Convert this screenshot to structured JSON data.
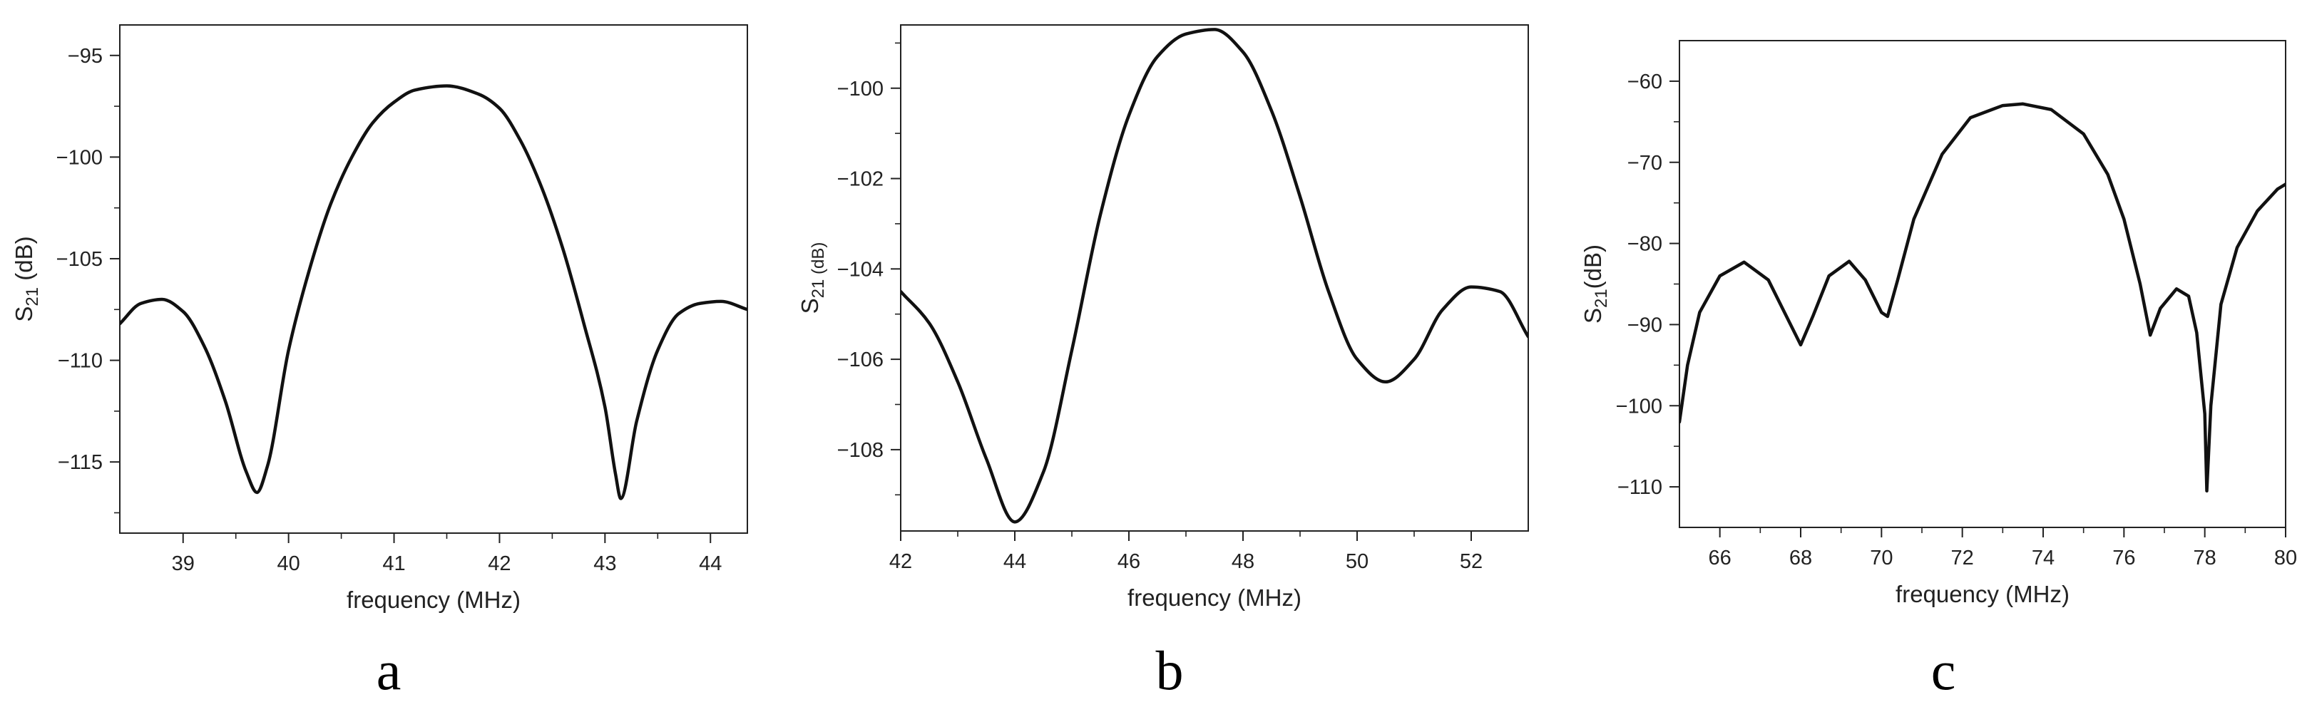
{
  "chart_data": [
    {
      "type": "line",
      "panel_label": "a",
      "xlabel": "frequency (MHz)",
      "ylabel": {
        "base": "S",
        "sub": "21",
        "rest": " (dB)"
      },
      "xlim": [
        38.4,
        44.35
      ],
      "ylim": [
        -118.5,
        -93.5
      ],
      "xticks": [
        39,
        40,
        41,
        42,
        43,
        44
      ],
      "yticks": [
        -95,
        -100,
        -105,
        -110,
        -115
      ],
      "grid": false,
      "legend": "none",
      "line_color": "#111111",
      "series": [
        {
          "x": [
            38.4,
            38.6,
            38.8,
            39.0,
            39.2,
            39.4,
            39.6,
            39.7,
            39.8,
            40.0,
            40.2,
            40.4,
            40.6,
            40.8,
            41.0,
            41.2,
            41.5,
            41.8,
            42.0,
            42.2,
            42.4,
            42.6,
            42.8,
            43.0,
            43.1,
            43.15,
            43.3,
            43.5,
            43.7,
            43.9,
            44.1,
            44.35
          ],
          "y": [
            -108.2,
            -107.2,
            -107.0,
            -107.6,
            -109.3,
            -112.0,
            -115.5,
            -116.5,
            -115.2,
            -109.5,
            -105.5,
            -102.3,
            -100.0,
            -98.3,
            -97.3,
            -96.7,
            -96.5,
            -96.9,
            -97.6,
            -99.2,
            -101.5,
            -104.5,
            -108.2,
            -112.3,
            -115.6,
            -116.8,
            -113.0,
            -109.5,
            -107.7,
            -107.2,
            -107.1,
            -107.5
          ]
        }
      ]
    },
    {
      "type": "line",
      "panel_label": "b",
      "xlabel": "frequency (MHz)",
      "ylabel": {
        "base": "S",
        "sub": "21 (dB)",
        "rest": ""
      },
      "xlim": [
        42.0,
        53.0
      ],
      "ylim": [
        -109.8,
        -98.6
      ],
      "xticks": [
        42,
        44,
        46,
        48,
        50,
        52
      ],
      "yticks": [
        -100,
        -102,
        -104,
        -106,
        -108
      ],
      "grid": false,
      "legend": "none",
      "line_color": "#111111",
      "series": [
        {
          "x": [
            42.0,
            42.5,
            43.0,
            43.5,
            44.0,
            44.5,
            45.0,
            45.5,
            46.0,
            46.5,
            47.0,
            47.5,
            48.0,
            48.5,
            49.0,
            49.5,
            50.0,
            50.5,
            51.0,
            51.5,
            52.0,
            52.5,
            53.0
          ],
          "y": [
            -104.5,
            -105.2,
            -106.5,
            -108.2,
            -109.6,
            -108.5,
            -105.8,
            -102.8,
            -100.6,
            -99.3,
            -98.8,
            -98.7,
            -99.2,
            -100.5,
            -102.4,
            -104.5,
            -106.0,
            -106.5,
            -106.0,
            -104.9,
            -104.4,
            -104.5,
            -105.5
          ]
        }
      ]
    },
    {
      "type": "line",
      "panel_label": "c",
      "xlabel": "frequency (MHz)",
      "ylabel": {
        "base": "S",
        "sub": "21",
        "rest": "(dB)"
      },
      "xlim": [
        65.0,
        80.0
      ],
      "ylim": [
        -115.0,
        -55.0
      ],
      "xticks": [
        66,
        68,
        70,
        72,
        74,
        76,
        78,
        80
      ],
      "yticks": [
        -60,
        -70,
        -80,
        -90,
        -100,
        -110
      ],
      "grid": false,
      "legend": "none",
      "line_color": "#111111",
      "series": [
        {
          "x": [
            65.0,
            65.2,
            65.5,
            66.0,
            66.6,
            67.2,
            67.6,
            68.0,
            68.3,
            68.7,
            69.2,
            69.6,
            70.0,
            70.15,
            70.4,
            70.8,
            71.5,
            72.2,
            73.0,
            73.5,
            74.2,
            75.0,
            75.6,
            76.0,
            76.4,
            76.65,
            76.9,
            77.3,
            77.6,
            77.8,
            78.0,
            78.05,
            78.15,
            78.4,
            78.8,
            79.3,
            79.8,
            80.0
          ],
          "y": [
            -102.0,
            -95.0,
            -88.5,
            -84.0,
            -82.3,
            -84.5,
            -88.5,
            -92.5,
            -89.0,
            -84.0,
            -82.2,
            -84.5,
            -88.5,
            -89.0,
            -84.5,
            -77.0,
            -69.0,
            -64.5,
            -63.0,
            -62.8,
            -63.5,
            -66.5,
            -71.5,
            -77.0,
            -85.0,
            -91.3,
            -88.0,
            -85.6,
            -86.5,
            -91.0,
            -101.0,
            -110.5,
            -100.0,
            -87.5,
            -80.5,
            -76.0,
            -73.3,
            -72.7
          ]
        }
      ]
    }
  ]
}
